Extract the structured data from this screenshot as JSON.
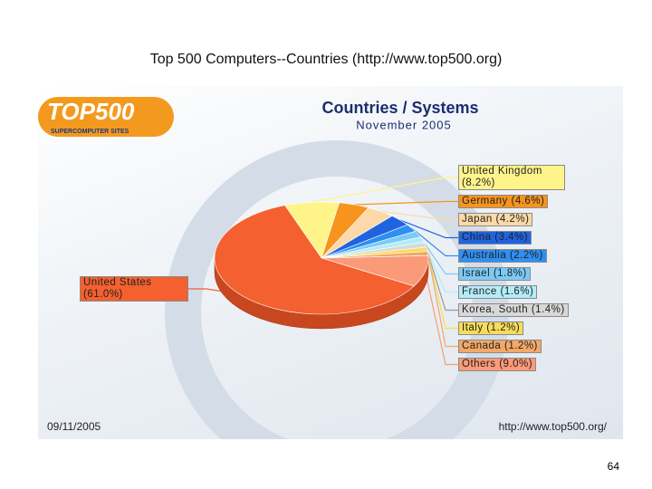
{
  "slide": {
    "title": "Top 500 Computers--Countries (http://www.top500.org)",
    "page_number": "64"
  },
  "chart_data": {
    "type": "pie",
    "logo": "TOP500",
    "logo_tagline": "SUPERCOMPUTER SITES",
    "title": "Countries / Systems",
    "subtitle": "November 2005",
    "date": "09/11/2005",
    "source": "http://www.top500.org/",
    "categories": [
      "United Kingdom",
      "Germany",
      "Japan",
      "China",
      "Australia",
      "Israel",
      "France",
      "Korea, South",
      "Italy",
      "Canada",
      "Others",
      "United States"
    ],
    "values": [
      8.2,
      4.6,
      4.2,
      3.4,
      2.2,
      1.8,
      1.6,
      1.4,
      1.2,
      1.2,
      9.0,
      61.0
    ],
    "value_labels": [
      "(8.2%)",
      "(4.6%)",
      "(4.2%)",
      "(3.4%)",
      "(2.2%)",
      "(1.8%)",
      "(1.6%)",
      "(1.4%)",
      "(1.2%)",
      "(1.2%)",
      "(9.0%)",
      "(61.0%)"
    ],
    "colors": [
      "#fff48a",
      "#f7941d",
      "#fcd9a8",
      "#1f63e0",
      "#2f8ff2",
      "#7ccaf6",
      "#b2ecf8",
      "#d8d8d8",
      "#f8dc5a",
      "#f3a868",
      "#fb9a78",
      "#f4602f"
    ]
  }
}
